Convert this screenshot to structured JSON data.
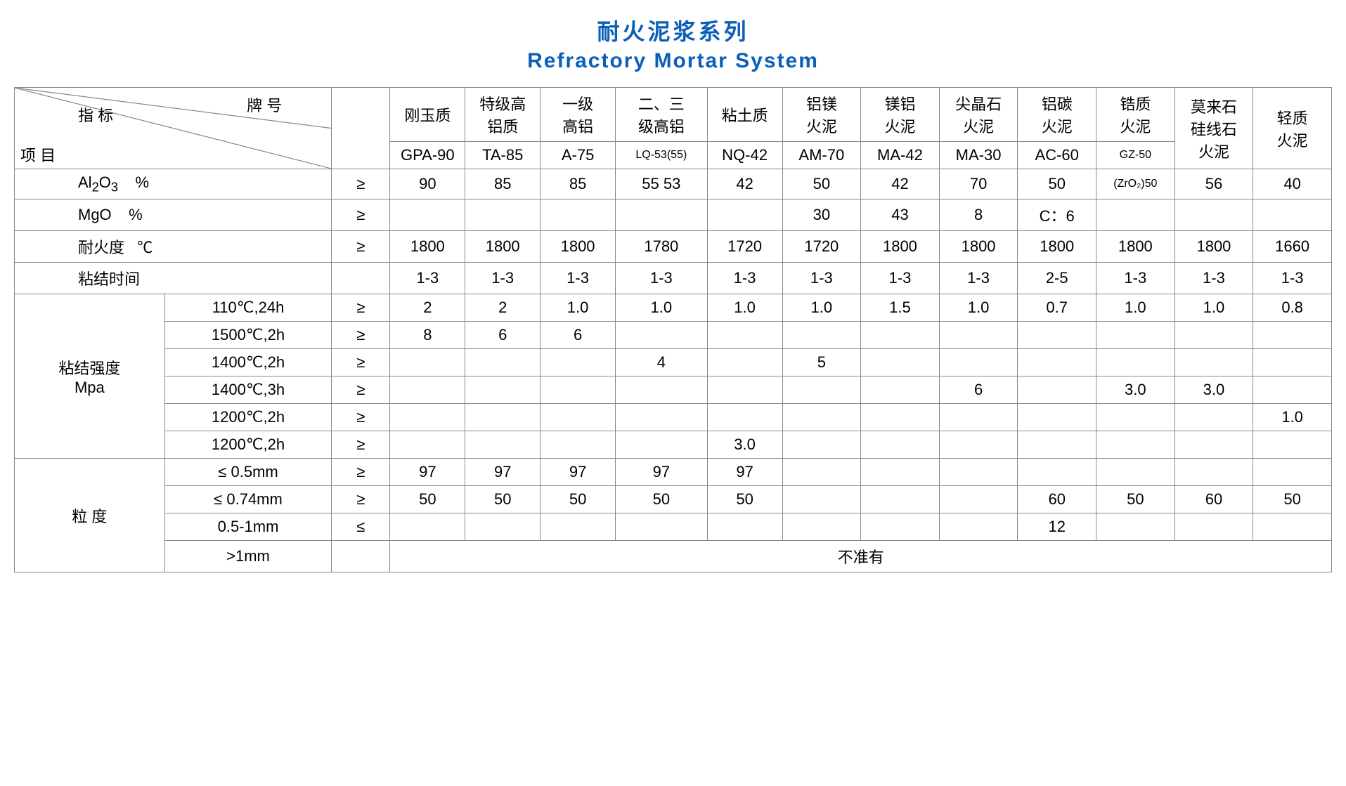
{
  "title_cn": "耐火泥浆系列",
  "title_en": "Refractory  Mortar  System",
  "corner": {
    "indicator": "指 标",
    "brand": "牌 号",
    "item": "项 目"
  },
  "op_col_blank": "",
  "col_groups": [
    {
      "top": "刚玉质",
      "code": "GPA-90"
    },
    {
      "top": "特级高\n铝质",
      "code": "TA-85"
    },
    {
      "top": "一级\n高铝",
      "code": "A-75"
    },
    {
      "top": "二、三\n级高铝",
      "code": "LQ-53(55)"
    },
    {
      "top": "粘土质",
      "code": "NQ-42"
    },
    {
      "top": "铝镁\n火泥",
      "code": "AM-70"
    },
    {
      "top": "镁铝\n火泥",
      "code": "MA-42"
    },
    {
      "top": "尖晶石\n火泥",
      "code": "MA-30"
    },
    {
      "top": "铝碳\n火泥",
      "code": "AC-60"
    },
    {
      "top": "锆质\n火泥",
      "code": "GZ-50"
    },
    {
      "top": "莫来石\n硅线石\n火泥",
      "code": ""
    },
    {
      "top": "轻质\n火泥",
      "code": ""
    }
  ],
  "rows": [
    {
      "label_html": "Al<sub>2</sub>O<sub>3</sub>&nbsp;&nbsp;&nbsp;&nbsp;%",
      "op": "≥",
      "v": [
        "90",
        "85",
        "85",
        "55 53",
        "42",
        "50",
        "42",
        "70",
        "50",
        "(ZrO₂)50",
        "56",
        "40"
      ]
    },
    {
      "label_html": "MgO&nbsp;&nbsp;&nbsp;&nbsp;%",
      "op": "≥",
      "v": [
        "",
        "",
        "",
        "",
        "",
        "30",
        "43",
        "8",
        "C：6",
        "",
        "",
        ""
      ]
    },
    {
      "label_html": "耐火度&nbsp;&nbsp;&nbsp;℃",
      "op": "≥",
      "v": [
        "1800",
        "1800",
        "1800",
        "1780",
        "1720",
        "1720",
        "1800",
        "1800",
        "1800",
        "1800",
        "1800",
        "1660"
      ]
    },
    {
      "label_html": "粘结时间",
      "op": "",
      "v": [
        "1-3",
        "1-3",
        "1-3",
        "1-3",
        "1-3",
        "1-3",
        "1-3",
        "1-3",
        "2-5",
        "1-3",
        "1-3",
        "1-3"
      ]
    }
  ],
  "strength": {
    "group_label": "粘结强度\nMpa",
    "rows": [
      {
        "cond": "110℃,24h",
        "op": "≥",
        "v": [
          "2",
          "2",
          "1.0",
          "1.0",
          "1.0",
          "1.0",
          "1.5",
          "1.0",
          "0.7",
          "1.0",
          "1.0",
          "0.8"
        ]
      },
      {
        "cond": "1500℃,2h",
        "op": "≥",
        "v": [
          "8",
          "6",
          "6",
          "",
          "",
          "",
          "",
          "",
          "",
          "",
          "",
          ""
        ]
      },
      {
        "cond": "1400℃,2h",
        "op": "≥",
        "v": [
          "",
          "",
          "",
          "4",
          "",
          "5",
          "",
          "",
          "",
          "",
          "",
          ""
        ]
      },
      {
        "cond": "1400℃,3h",
        "op": "≥",
        "v": [
          "",
          "",
          "",
          "",
          "",
          "",
          "",
          "6",
          "",
          "3.0",
          "3.0",
          ""
        ]
      },
      {
        "cond": "1200℃,2h",
        "op": "≥",
        "v": [
          "",
          "",
          "",
          "",
          "",
          "",
          "",
          "",
          "",
          "",
          "",
          "1.0"
        ]
      },
      {
        "cond": "1200℃,2h",
        "op": "≥",
        "v": [
          "",
          "",
          "",
          "",
          "3.0",
          "",
          "",
          "",
          "",
          "",
          "",
          ""
        ]
      }
    ]
  },
  "grain": {
    "group_label": "粒  度",
    "rows": [
      {
        "cond": "≤ 0.5mm",
        "op": "≥",
        "v": [
          "97",
          "97",
          "97",
          "97",
          "97",
          "",
          "",
          "",
          "",
          "",
          "",
          ""
        ]
      },
      {
        "cond": "≤ 0.74mm",
        "op": "≥",
        "v": [
          "50",
          "50",
          "50",
          "50",
          "50",
          "",
          "",
          "",
          "60",
          "50",
          "60",
          "50"
        ]
      },
      {
        "cond": "0.5-1mm",
        "op": "≤",
        "v": [
          "",
          "",
          "",
          "",
          "",
          "",
          "",
          "",
          "12",
          "",
          "",
          ""
        ]
      }
    ],
    "last": {
      "cond": ">1mm",
      "op": "",
      "span_text": "不准有"
    }
  }
}
